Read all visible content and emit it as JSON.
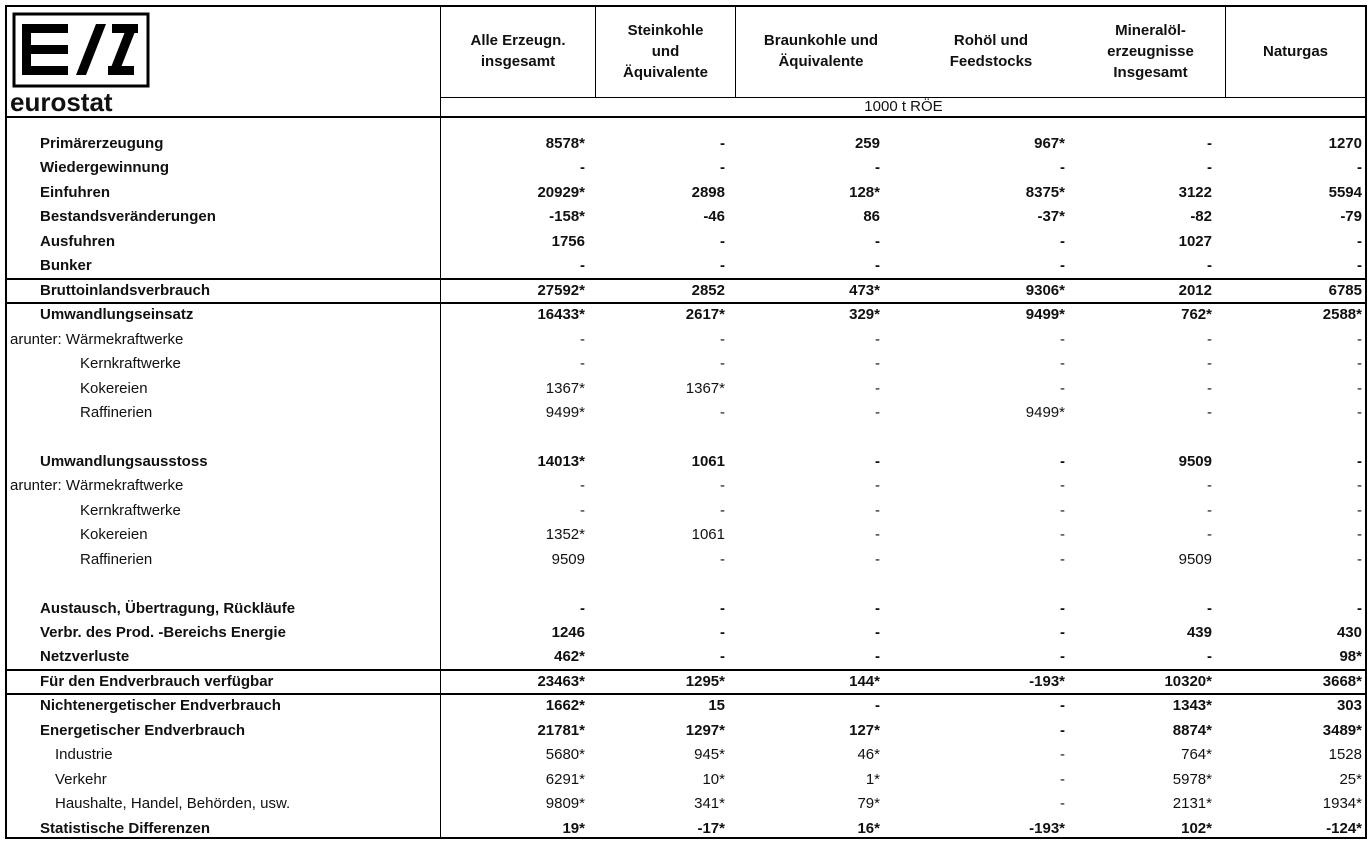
{
  "logo": "eurostat",
  "header": {
    "columns": [
      "Alle Erzeugn.\ninsgesamt",
      "Steinkohle\nund\nÄquivalente",
      "Braunkohle und\nÄquivalente",
      "Rohöl und\nFeedstocks",
      "Mineralöl-\nerzeugnisse\nInsgesamt",
      "Naturgas"
    ],
    "unit": "1000 t RÖE"
  },
  "rows": [
    {
      "label": "Primärerzeugung",
      "values": [
        "8578*",
        "-",
        "259",
        "967*",
        "-",
        "1270"
      ]
    },
    {
      "label": "Wiedergewinnung",
      "values": [
        "-",
        "-",
        "-",
        "-",
        "-",
        "-"
      ]
    },
    {
      "label": "Einfuhren",
      "values": [
        "20929*",
        "2898",
        "128*",
        "8375*",
        "3122",
        "5594"
      ]
    },
    {
      "label": "Bestandsveränderungen",
      "values": [
        "-158*",
        "-46",
        "86",
        "-37*",
        "-82",
        "-79"
      ]
    },
    {
      "label": "Ausfuhren",
      "values": [
        "1756",
        "-",
        "-",
        "-",
        "1027",
        "-"
      ]
    },
    {
      "label": "Bunker",
      "values": [
        "-",
        "-",
        "-",
        "-",
        "-",
        "-"
      ]
    },
    {
      "label": "Bruttoinlandsverbrauch",
      "values": [
        "27592*",
        "2852",
        "473*",
        "9306*",
        "2012",
        "6785"
      ]
    },
    {
      "label": "Umwandlungseinsatz",
      "values": [
        "16433*",
        "2617*",
        "329*",
        "9499*",
        "762*",
        "2588*"
      ]
    },
    {
      "label": "arunter: Wärmekraftwerke",
      "values": [
        "-",
        "-",
        "-",
        "-",
        "-",
        "-"
      ]
    },
    {
      "label": "Kernkraftwerke",
      "values": [
        "-",
        "-",
        "-",
        "-",
        "-",
        "-"
      ]
    },
    {
      "label": "Kokereien",
      "values": [
        "1367*",
        "1367*",
        "-",
        "-",
        "-",
        "-"
      ]
    },
    {
      "label": "Raffinerien",
      "values": [
        "9499*",
        "-",
        "-",
        "9499*",
        "-",
        "-"
      ]
    },
    {
      "label": "Umwandlungsausstoss",
      "values": [
        "14013*",
        "1061",
        "-",
        "-",
        "9509",
        "-"
      ]
    },
    {
      "label": "arunter: Wärmekraftwerke",
      "values": [
        "-",
        "-",
        "-",
        "-",
        "-",
        "-"
      ]
    },
    {
      "label": "Kernkraftwerke",
      "values": [
        "-",
        "-",
        "-",
        "-",
        "-",
        "-"
      ]
    },
    {
      "label": "Kokereien",
      "values": [
        "1352*",
        "1061",
        "-",
        "-",
        "-",
        "-"
      ]
    },
    {
      "label": "Raffinerien",
      "values": [
        "9509",
        "-",
        "-",
        "-",
        "9509",
        "-"
      ]
    },
    {
      "label": "Austausch, Übertragung, Rückläufe",
      "values": [
        "-",
        "-",
        "-",
        "-",
        "-",
        "-"
      ]
    },
    {
      "label": "Verbr. des Prod. -Bereichs Energie",
      "values": [
        "1246",
        "-",
        "-",
        "-",
        "439",
        "430"
      ]
    },
    {
      "label": "Netzverluste",
      "values": [
        "462*",
        "-",
        "-",
        "-",
        "-",
        "98*"
      ]
    },
    {
      "label": "Für den Endverbrauch verfügbar",
      "values": [
        "23463*",
        "1295*",
        "144*",
        "-193*",
        "10320*",
        "3668*"
      ]
    },
    {
      "label": "Nichtenergetischer Endverbrauch",
      "values": [
        "1662*",
        "15",
        "-",
        "-",
        "1343*",
        "303"
      ]
    },
    {
      "label": "Energetischer Endverbrauch",
      "values": [
        "21781*",
        "1297*",
        "127*",
        "-",
        "8874*",
        "3489*"
      ]
    },
    {
      "label": "Industrie",
      "values": [
        "5680*",
        "945*",
        "46*",
        "-",
        "764*",
        "1528"
      ]
    },
    {
      "label": "Verkehr",
      "values": [
        "6291*",
        "10*",
        "1*",
        "-",
        "5978*",
        "25*"
      ]
    },
    {
      "label": "Haushalte, Handel, Behörden, usw.",
      "values": [
        "9809*",
        "341*",
        "79*",
        "-",
        "2131*",
        "1934*"
      ]
    },
    {
      "label": "Statistische Differenzen",
      "values": [
        "19*",
        "-17*",
        "16*",
        "-193*",
        "102*",
        "-124*"
      ]
    }
  ]
}
